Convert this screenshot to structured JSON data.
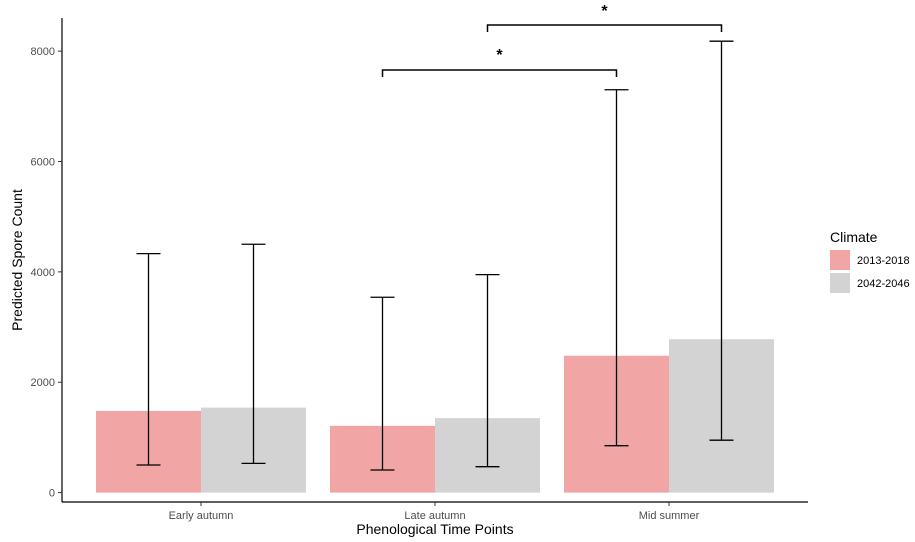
{
  "chart_data": {
    "type": "bar",
    "title": "",
    "xlabel": "Phenological Time Points",
    "ylabel": "Predicted Spore Count",
    "categories": [
      "Early autumn",
      "Late autumn",
      "Mid summer"
    ],
    "ylim": [
      -170,
      8600
    ],
    "yticks": [
      0,
      2000,
      4000,
      6000,
      8000
    ],
    "grid": false,
    "legend": {
      "title": "Climate",
      "placement": "right"
    },
    "series": [
      {
        "name": "2013-2018",
        "color": "#f2a5a5",
        "values": [
          1480,
          1210,
          2480
        ],
        "error_low": [
          500,
          410,
          850
        ],
        "error_high": [
          4330,
          3540,
          7300
        ]
      },
      {
        "name": "2042-2046",
        "color": "#d3d3d3",
        "values": [
          1540,
          1350,
          2780
        ],
        "error_low": [
          530,
          470,
          950
        ],
        "error_high": [
          4500,
          3950,
          8180
        ]
      }
    ],
    "annotations": [
      {
        "label": "*",
        "from": {
          "category": "Late autumn",
          "series": "2013-2018"
        },
        "to": {
          "category": "Mid summer",
          "series": "2013-2018"
        }
      },
      {
        "label": "*",
        "from": {
          "category": "Late autumn",
          "series": "2042-2046"
        },
        "to": {
          "category": "Mid summer",
          "series": "2042-2046"
        }
      }
    ]
  }
}
